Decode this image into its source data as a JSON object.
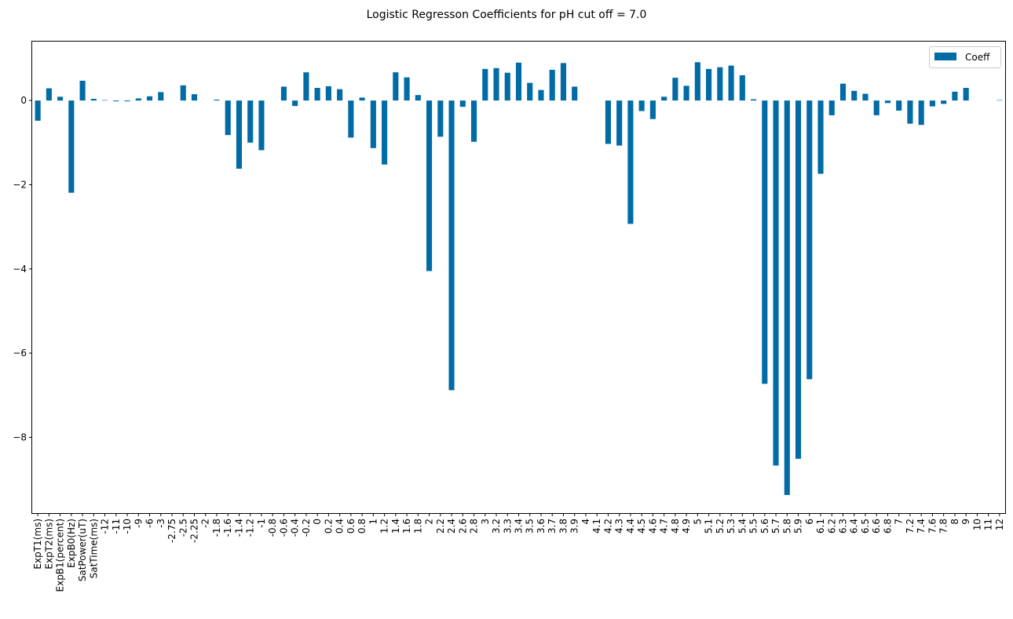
{
  "chart_data": {
    "type": "bar",
    "title": "Logistic Regresson Coefficients for pH cut off = 7.0",
    "xlabel": "",
    "ylabel": "",
    "ylim": [
      -9.8,
      1.4
    ],
    "yticks": [
      0,
      -2,
      -4,
      -6,
      -8
    ],
    "ytick_labels": [
      "0",
      "−2",
      "−4",
      "−6",
      "−8"
    ],
    "grid": false,
    "legend_position": "top-right",
    "bar_color": "#006ba4",
    "categories": [
      "ExpT1(ms)",
      "ExpT2(ms)",
      "ExpB1(percent)",
      "ExpB0(Hz)",
      "SatPower(uT)",
      "SatTime(ms)",
      "-12",
      "-11",
      "-10",
      "-9",
      "-6",
      "-3",
      "-2.75",
      "-2.5",
      "-2.25",
      "-2",
      "-1.8",
      "-1.6",
      "-1.4",
      "-1.2",
      "-1",
      "-0.8",
      "-0.6",
      "-0.4",
      "-0.2",
      "0",
      "0.2",
      "0.4",
      "0.6",
      "0.8",
      "1",
      "1.2",
      "1.4",
      "1.6",
      "1.8",
      "2",
      "2.2",
      "2.4",
      "2.6",
      "2.8",
      "3",
      "3.2",
      "3.3",
      "3.4",
      "3.5",
      "3.6",
      "3.7",
      "3.8",
      "3.9",
      "4",
      "4.1",
      "4.2",
      "4.3",
      "4.4",
      "4.5",
      "4.6",
      "4.7",
      "4.8",
      "4.9",
      "5",
      "5.1",
      "5.2",
      "5.3",
      "5.4",
      "5.5",
      "5.6",
      "5.7",
      "5.8",
      "5.9",
      "6",
      "6.1",
      "6.2",
      "6.3",
      "6.4",
      "6.5",
      "6.6",
      "6.8",
      "7",
      "7.2",
      "7.4",
      "7.6",
      "7.8",
      "8",
      "9",
      "10",
      "11",
      "12"
    ],
    "series": [
      {
        "name": "Coeff",
        "values": [
          -0.48,
          0.29,
          0.09,
          -2.19,
          0.47,
          0.04,
          0.01,
          -0.02,
          -0.02,
          0.05,
          0.1,
          0.2,
          0.0,
          0.36,
          0.15,
          0.0,
          0.02,
          -0.82,
          -1.62,
          -1.0,
          -1.18,
          0.0,
          0.33,
          -0.13,
          0.67,
          0.3,
          0.34,
          0.27,
          -0.88,
          0.07,
          -1.13,
          -1.52,
          0.67,
          0.55,
          0.13,
          -4.05,
          -0.86,
          -6.88,
          -0.15,
          -0.98,
          0.75,
          0.77,
          0.66,
          0.9,
          0.42,
          0.25,
          0.73,
          0.89,
          0.33,
          0.0,
          0.0,
          -1.03,
          -1.07,
          -2.93,
          -0.25,
          -0.44,
          0.09,
          0.54,
          0.35,
          0.91,
          0.75,
          0.79,
          0.83,
          0.6,
          0.03,
          -6.73,
          -8.67,
          -9.37,
          -8.51,
          -6.62,
          -1.74,
          -0.35,
          0.4,
          0.23,
          0.16,
          -0.35,
          -0.06,
          -0.24,
          -0.55,
          -0.58,
          -0.14,
          -0.08,
          0.21,
          0.3,
          0.0,
          0.0,
          0.01
        ]
      }
    ]
  }
}
